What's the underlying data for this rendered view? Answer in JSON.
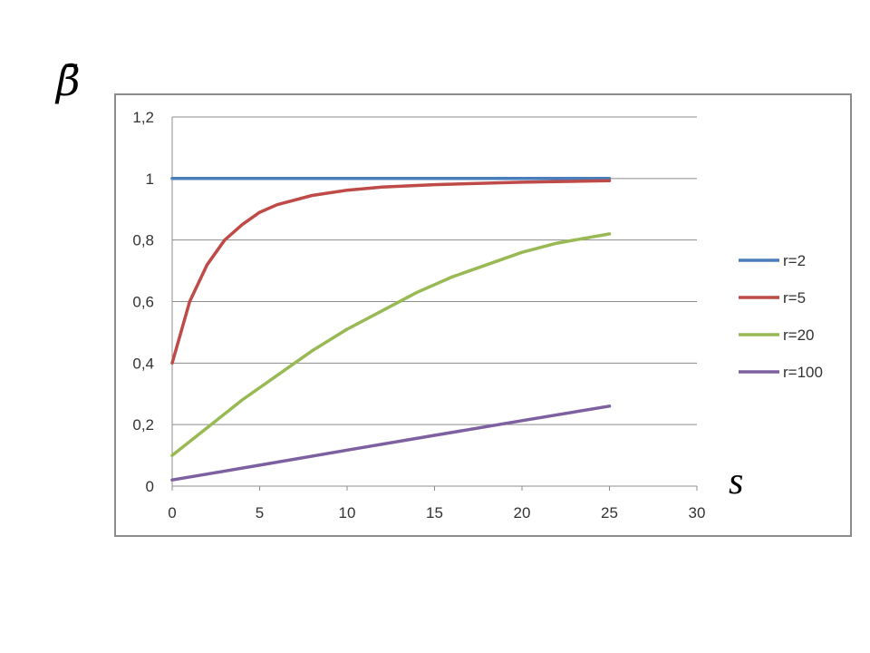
{
  "chart_data": {
    "type": "line",
    "ylabel": "β̄",
    "xlabel": "s",
    "xlim": [
      0,
      30
    ],
    "ylim": [
      0,
      1.2
    ],
    "x_ticks": [
      "0",
      "5",
      "10",
      "15",
      "20",
      "25",
      "30"
    ],
    "y_ticks": [
      "0",
      "0,2",
      "0,4",
      "0,6",
      "0,8",
      "1",
      "1,2"
    ],
    "grid": "horizontal",
    "legend_position": "right",
    "series": [
      {
        "name": "r=2",
        "color": "#4a7ebb",
        "x": [
          0,
          25
        ],
        "y": [
          1.0,
          1.0
        ]
      },
      {
        "name": "r=5",
        "color": "#be4b48",
        "x": [
          0,
          1,
          2,
          3,
          4,
          5,
          6,
          8,
          10,
          12,
          15,
          20,
          25
        ],
        "y": [
          0.4,
          0.6,
          0.72,
          0.8,
          0.85,
          0.89,
          0.915,
          0.945,
          0.962,
          0.972,
          0.98,
          0.988,
          0.993
        ]
      },
      {
        "name": "r=20",
        "color": "#98b954",
        "x": [
          0,
          2,
          4,
          6,
          8,
          10,
          12,
          14,
          16,
          18,
          20,
          22,
          25
        ],
        "y": [
          0.1,
          0.19,
          0.28,
          0.36,
          0.44,
          0.51,
          0.57,
          0.63,
          0.68,
          0.72,
          0.76,
          0.79,
          0.82
        ]
      },
      {
        "name": "r=100",
        "color": "#7d60a0",
        "x": [
          0,
          5,
          10,
          15,
          20,
          25
        ],
        "y": [
          0.02,
          0.068,
          0.117,
          0.165,
          0.213,
          0.26
        ]
      }
    ]
  }
}
